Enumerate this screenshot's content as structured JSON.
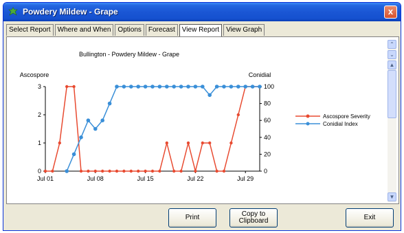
{
  "window": {
    "title": "Powdery Mildew - Grape",
    "close_label": "x"
  },
  "tabs": [
    {
      "label": "Select Report"
    },
    {
      "label": "Where and When"
    },
    {
      "label": "Options"
    },
    {
      "label": "Forecast"
    },
    {
      "label": "View Report",
      "active": true
    },
    {
      "label": "View Graph"
    }
  ],
  "chart_data": {
    "type": "line",
    "title": "Bullington - Powdery Mildew - Grape",
    "left_axis_label": "Ascospore",
    "right_axis_label": "Conidial",
    "left_ylim": [
      0,
      3
    ],
    "right_ylim": [
      0,
      100
    ],
    "left_ticks": [
      "0",
      "1",
      "2",
      "3"
    ],
    "right_ticks": [
      "0",
      "20",
      "40",
      "60",
      "80",
      "100"
    ],
    "x_ticks": [
      "Jul 01",
      "Jul 08",
      "Jul 15",
      "Jul 22",
      "Jul 29"
    ],
    "x_tick_days": [
      1,
      8,
      15,
      22,
      29
    ],
    "legend_position": "right",
    "series": [
      {
        "name": "Ascospore Severity",
        "axis": "left",
        "color": "#e84a30",
        "x": [
          1,
          2,
          3,
          4,
          5,
          6,
          7,
          8,
          9,
          10,
          11,
          12,
          13,
          14,
          15,
          16,
          17,
          18,
          19,
          20,
          21,
          22,
          23,
          24,
          25,
          26,
          27,
          28,
          29,
          30,
          31
        ],
        "values": [
          0,
          0,
          1,
          3,
          3,
          0,
          0,
          0,
          0,
          0,
          0,
          0,
          0,
          0,
          0,
          0,
          0,
          1,
          0,
          0,
          1,
          0,
          1,
          1,
          0,
          0,
          1,
          2,
          3,
          3,
          3
        ]
      },
      {
        "name": "Conidial Index",
        "axis": "right",
        "color": "#3a8fd8",
        "x": [
          4,
          5,
          6,
          7,
          8,
          9,
          10,
          11,
          12,
          13,
          14,
          15,
          16,
          17,
          18,
          19,
          20,
          21,
          22,
          23,
          24,
          25,
          26,
          27,
          28,
          29,
          30,
          31
        ],
        "values": [
          0,
          20,
          40,
          60,
          50,
          60,
          80,
          100,
          100,
          100,
          100,
          100,
          100,
          100,
          100,
          100,
          100,
          100,
          100,
          100,
          90,
          100,
          100,
          100,
          100,
          100,
          100,
          100
        ]
      }
    ]
  },
  "buttons": {
    "print": "Print",
    "copy_line1": "Copy to",
    "copy_line2": "Clipboard",
    "exit": "Exit"
  }
}
